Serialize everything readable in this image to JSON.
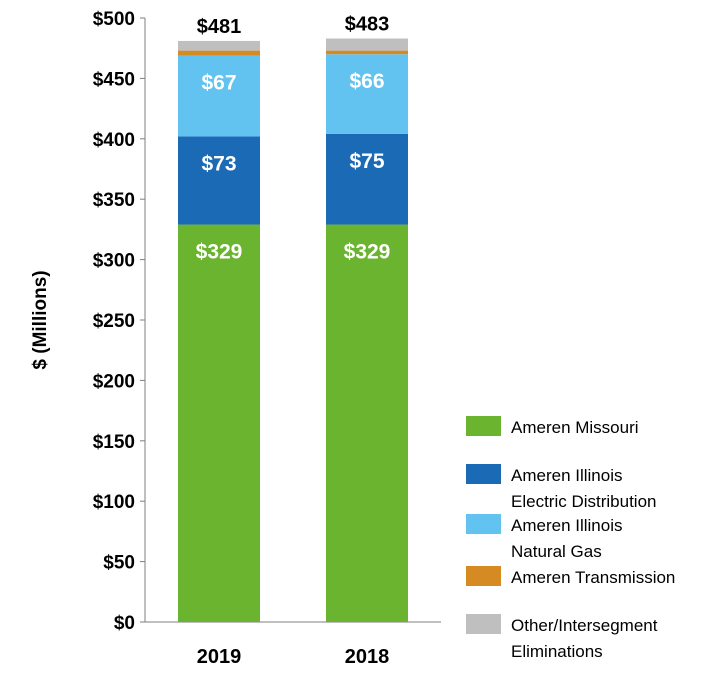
{
  "chart_data": {
    "type": "bar",
    "stacked": true,
    "title": "",
    "xlabel": "",
    "ylabel": "$ (Millions)",
    "ylim": [
      0,
      500
    ],
    "yticks": [
      "$0",
      "$50",
      "$100",
      "$150",
      "$200",
      "$250",
      "$300",
      "$350",
      "$400",
      "$450",
      "$500"
    ],
    "categories": [
      "2019",
      "2018"
    ],
    "totals": [
      "$481",
      "$483"
    ],
    "series": [
      {
        "name": "Ameren Missouri",
        "color": "#6ab42f",
        "values": [
          329,
          329
        ],
        "labels": [
          "$329",
          "$329"
        ]
      },
      {
        "name": "Ameren Illinois Electric Distribution",
        "legend_lines": [
          "Ameren Illinois",
          "Electric Distribution"
        ],
        "color": "#1b6ab5",
        "values": [
          73,
          75
        ],
        "labels": [
          "$73",
          "$75"
        ]
      },
      {
        "name": "Ameren Illinois Natural Gas",
        "legend_lines": [
          "Ameren Illinois",
          "Natural Gas"
        ],
        "color": "#63c3f0",
        "values": [
          67,
          66
        ],
        "labels": [
          "$67",
          "$66"
        ]
      },
      {
        "name": "Ameren Transmission",
        "legend_lines": [
          "Ameren Transmission"
        ],
        "color": "#d68a22",
        "values": [
          4,
          3
        ],
        "labels": [
          "",
          ""
        ]
      },
      {
        "name": "Other/Intersegment Eliminations",
        "legend_lines": [
          "Other/Intersegment",
          "Eliminations"
        ],
        "color": "#bfbfbf",
        "values": [
          8,
          10
        ],
        "labels": [
          "",
          ""
        ]
      }
    ],
    "legend_position": "right",
    "grid": false
  }
}
